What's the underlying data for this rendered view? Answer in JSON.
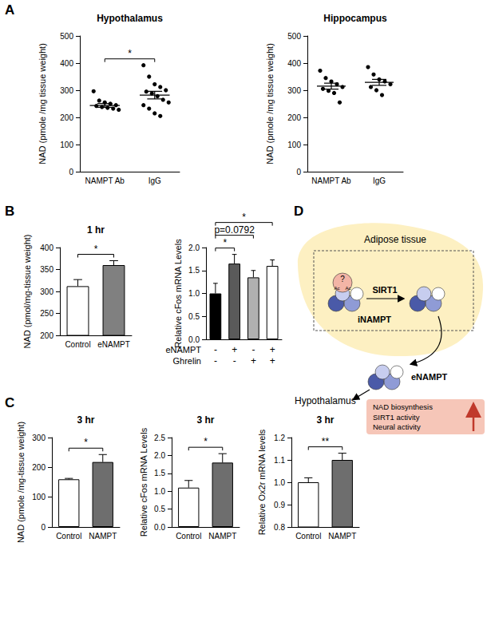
{
  "panel_labels": [
    "A",
    "B",
    "C",
    "D"
  ],
  "chart_data": [
    {
      "type": "scatter",
      "title": "Hypothalamus",
      "y_label": "NAD (pmole /mg tissue weight)",
      "categories": [
        "NAMPT Ab",
        "IgG"
      ],
      "values": [
        [
          296,
          262,
          255,
          250,
          245,
          242,
          238,
          235,
          232,
          228
        ],
        [
          392,
          350,
          322,
          312,
          300,
          295,
          288,
          278,
          265,
          255,
          245,
          232,
          215,
          205
        ]
      ],
      "mean": [
        244,
        282
      ],
      "error": [
        7,
        14
      ],
      "color": "#000000",
      "marker": "circle",
      "ylim": [
        0,
        500
      ],
      "yticks": [
        0,
        100,
        200,
        300,
        400,
        500
      ],
      "grid": false,
      "annotations": [
        {
          "text": "*",
          "between": [
            0,
            1
          ]
        }
      ]
    },
    {
      "type": "scatter",
      "title": "Hippocampus",
      "y_label": "NAD (pmole /mg tissue weight)",
      "categories": [
        "NAMPT Ab",
        "IgG"
      ],
      "values": [
        [
          372,
          345,
          332,
          322,
          312,
          305,
          298,
          290,
          255
        ],
        [
          385,
          358,
          340,
          332,
          322,
          312,
          300,
          282
        ]
      ],
      "mean": [
        315,
        329
      ],
      "error": [
        11,
        11
      ],
      "color": "#000000",
      "marker": "circle",
      "ylim": [
        0,
        500
      ],
      "yticks": [
        0,
        100,
        200,
        300,
        400,
        500
      ],
      "grid": false,
      "annotations": []
    },
    {
      "type": "bar",
      "title": "1 hr",
      "y_label": "NAD (pmol/mg-tissue weight)",
      "categories": [
        "Control",
        "eNAMPT"
      ],
      "values": [
        312,
        360
      ],
      "error": [
        15,
        10
      ],
      "colors": [
        "#ffffff",
        "#808080"
      ],
      "ylim": [
        200,
        400
      ],
      "yticks": [
        200,
        250,
        300,
        350,
        400
      ],
      "grid": false,
      "annotations": [
        {
          "text": "*",
          "between": [
            0,
            1
          ]
        }
      ]
    },
    {
      "type": "bar",
      "y_label": "Relative cFos mRNA Levels",
      "categories": [
        null,
        null,
        null,
        null
      ],
      "condition_rows": [
        {
          "name": "eNAMPT",
          "values": [
            "-",
            "+",
            "-",
            "+"
          ]
        },
        {
          "name": "Ghrelin",
          "values": [
            "-",
            "-",
            "+",
            "+"
          ]
        }
      ],
      "values": [
        1.0,
        1.65,
        1.35,
        1.6
      ],
      "error": [
        0.22,
        0.2,
        0.15,
        0.13
      ],
      "colors": [
        "#000000",
        "#5a5a5a",
        "#b0b0b0",
        "#ffffff"
      ],
      "ylim": [
        0,
        2.0
      ],
      "yticks": [
        {
          "value": 0,
          "label": "0.0"
        },
        0.5,
        {
          "value": 1,
          "label": "1.0"
        },
        1.5,
        {
          "value": 2,
          "label": "2.0"
        }
      ],
      "grid": false,
      "annotations": [
        {
          "text": "*",
          "between": [
            0,
            1
          ]
        },
        {
          "text": "p=0.0792",
          "between": [
            0,
            2
          ]
        },
        {
          "text": "*",
          "between": [
            0,
            3
          ]
        }
      ]
    },
    {
      "type": "bar",
      "title": "3 hr",
      "y_label": "NAD (pmole /mg-tissue weight)",
      "categories": [
        "Control",
        "NAMPT"
      ],
      "values": [
        160,
        218
      ],
      "error": [
        3,
        25
      ],
      "colors": [
        "#ffffff",
        "#6e6e6e"
      ],
      "ylim": [
        0,
        300
      ],
      "yticks": [
        0,
        100,
        200,
        300
      ],
      "grid": false,
      "annotations": [
        {
          "text": "*",
          "between": [
            0,
            1
          ]
        }
      ]
    },
    {
      "type": "bar",
      "title": "3 hr",
      "y_label": "Relative cFos mRNA Levels",
      "categories": [
        "Control",
        "NAMPT"
      ],
      "values": [
        1.1,
        1.8
      ],
      "error": [
        0.2,
        0.25
      ],
      "colors": [
        "#ffffff",
        "#6e6e6e"
      ],
      "ylim": [
        0,
        2.5
      ],
      "yticks": [
        {
          "value": 0,
          "label": "0.0"
        },
        0.5,
        {
          "value": 1,
          "label": "1.0"
        },
        1.5,
        {
          "value": 2,
          "label": "2.0"
        },
        2.5
      ],
      "grid": false,
      "annotations": [
        {
          "text": "*",
          "between": [
            0,
            1
          ]
        }
      ]
    },
    {
      "type": "bar",
      "title": "3 hr",
      "y_label": "Relative Ox2r mRNA levels",
      "categories": [
        "Control",
        "NAMPT"
      ],
      "values": [
        1.0,
        1.1
      ],
      "error": [
        0.02,
        0.03
      ],
      "colors": [
        "#ffffff",
        "#6e6e6e"
      ],
      "ylim": [
        0.8,
        1.2
      ],
      "yticks": [
        0.8,
        0.9,
        {
          "value": 1,
          "label": "1.0"
        },
        1.1,
        1.2
      ],
      "grid": false,
      "annotations": [
        {
          "text": "**",
          "between": [
            0,
            1
          ]
        }
      ]
    }
  ],
  "diagram": {
    "tissue": "Adipose tissue",
    "unknown_mark": "?",
    "acetyl_mark": "Ac",
    "enzyme": "SIRT1",
    "intracellular": "iNAMPT",
    "extracellular": "eNAMPT",
    "target": "Hypothalamus",
    "effects": [
      "NAD biosynthesis",
      "SIRT1 activity",
      "Neural activity"
    ]
  }
}
